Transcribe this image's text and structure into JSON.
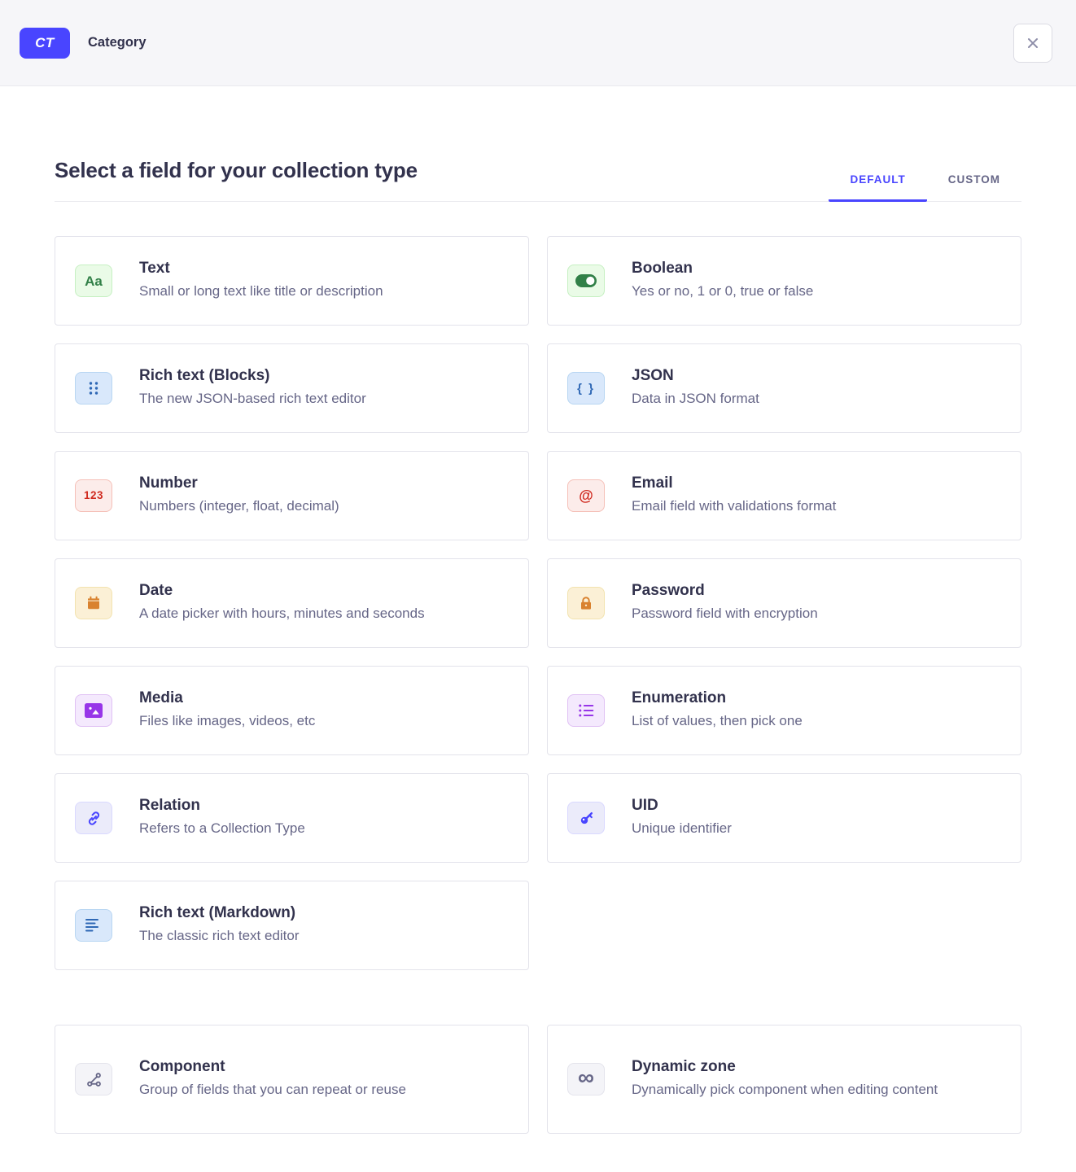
{
  "header": {
    "badge_label": "CT",
    "title": "Category"
  },
  "main": {
    "heading": "Select a field for your collection type",
    "tabs": [
      {
        "label": "DEFAULT",
        "active": true
      },
      {
        "label": "CUSTOM",
        "active": false
      }
    ]
  },
  "colors": {
    "primary": "#4945ff",
    "heading_text": "#32324d",
    "muted_text": "#666687",
    "header_bg": "#f6f6f9",
    "divider": "#eaeaef",
    "close_icon": "#8e8ea9",
    "schemes": {
      "green": {
        "bg": "#eafbe7",
        "border": "#c6f0c2",
        "fg": "#328048"
      },
      "blue": {
        "bg": "#d9e8fb",
        "border": "#b8d6f2",
        "fg": "#2f68b5"
      },
      "red": {
        "bg": "#fcecea",
        "border": "#f5c0b8",
        "fg": "#d02b20"
      },
      "orange": {
        "bg": "#fbf0d6",
        "border": "#f2e3af",
        "fg": "#d9822f"
      },
      "purple": {
        "bg": "#f4e9fd",
        "border": "#e0c1f4",
        "fg": "#9736e8"
      },
      "indigo": {
        "bg": "#ebebfa",
        "border": "#d9d8ff",
        "fg": "#4945ff"
      },
      "neutral": {
        "bg": "#f4f4f8",
        "border": "#e4e4ec",
        "fg": "#666687"
      }
    }
  },
  "fields": {
    "default": [
      {
        "name": "Text",
        "description": "Small or long text like title or description",
        "icon": "text-icon",
        "scheme": "green",
        "glyph": "Aa"
      },
      {
        "name": "Boolean",
        "description": "Yes or no, 1 or 0, true or false",
        "icon": "boolean-toggle-icon",
        "scheme": "green"
      },
      {
        "name": "Rich text (Blocks)",
        "description": "The new JSON-based rich text editor",
        "icon": "blocks-dots-icon",
        "scheme": "blue"
      },
      {
        "name": "JSON",
        "description": "Data in JSON format",
        "icon": "json-braces-icon",
        "scheme": "blue",
        "glyph": "{ }"
      },
      {
        "name": "Number",
        "description": "Numbers (integer, float, decimal)",
        "icon": "number-123-icon",
        "scheme": "red",
        "glyph": "123"
      },
      {
        "name": "Email",
        "description": "Email field with validations format",
        "icon": "email-at-icon",
        "scheme": "red",
        "glyph": "@"
      },
      {
        "name": "Date",
        "description": "A date picker with hours, minutes and seconds",
        "icon": "calendar-icon",
        "scheme": "orange"
      },
      {
        "name": "Password",
        "description": "Password field with encryption",
        "icon": "lock-icon",
        "scheme": "orange"
      },
      {
        "name": "Media",
        "description": "Files like images, videos, etc",
        "icon": "media-image-icon",
        "scheme": "purple"
      },
      {
        "name": "Enumeration",
        "description": "List of values, then pick one",
        "icon": "bullet-list-icon",
        "scheme": "purple"
      },
      {
        "name": "Relation",
        "description": "Refers to a Collection Type",
        "icon": "relation-link-icon",
        "scheme": "indigo"
      },
      {
        "name": "UID",
        "description": "Unique identifier",
        "icon": "key-icon",
        "scheme": "indigo"
      },
      {
        "name": "Rich text (Markdown)",
        "description": "The classic rich text editor",
        "icon": "markdown-lines-icon",
        "scheme": "blue"
      }
    ],
    "advanced": [
      {
        "name": "Component",
        "description": "Group of fields that you can repeat or reuse",
        "icon": "component-nodes-icon",
        "scheme": "neutral"
      },
      {
        "name": "Dynamic zone",
        "description": "Dynamically pick component when editing content",
        "icon": "infinity-icon",
        "scheme": "neutral",
        "glyph": "∞"
      }
    ]
  }
}
